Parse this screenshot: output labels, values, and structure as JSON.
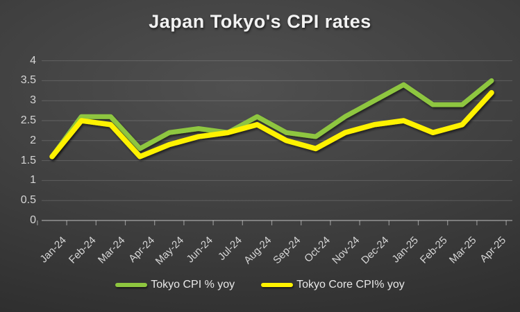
{
  "chart_data": {
    "type": "line",
    "title": "Japan Tokyo's CPI rates",
    "categories": [
      "Jan-24",
      "Feb-24",
      "Mar-24",
      "Apr-24",
      "May-24",
      "Jun-24",
      "Jul-24",
      "Aug-24",
      "Sep-24",
      "Oct-24",
      "Nov-24",
      "Dec-24",
      "Jan-25",
      "Feb-25",
      "Mar-25",
      "Apr-25"
    ],
    "series": [
      {
        "name": "Tokyo CPI % yoy",
        "color": "#8EC63F",
        "stroke_width": 7,
        "values": [
          1.6,
          2.6,
          2.6,
          1.8,
          2.2,
          2.3,
          2.2,
          2.6,
          2.2,
          2.1,
          2.6,
          3.0,
          3.4,
          2.9,
          2.9,
          3.5
        ]
      },
      {
        "name": "Tokyo Core CPI% yoy",
        "color": "#FFF200",
        "stroke_width": 7.5,
        "values": [
          1.6,
          2.5,
          2.4,
          1.6,
          1.9,
          2.1,
          2.2,
          2.4,
          2.0,
          1.8,
          2.2,
          2.4,
          2.5,
          2.2,
          2.4,
          3.2
        ]
      }
    ],
    "ylim": [
      0,
      4
    ],
    "yticks": [
      0,
      0.5,
      1,
      1.5,
      2,
      2.5,
      3,
      3.5,
      4
    ],
    "xlabel": "",
    "ylabel": "",
    "grid": true,
    "legend_position": "bottom",
    "x_label_rotation": -45
  },
  "style": {
    "grid_color": "rgba(255,255,255,0.16)",
    "axis_color": "rgba(255,255,255,0.45)",
    "label_color": "#d6d6d6",
    "title_color": "#f2f2f2",
    "background_center": "#505050",
    "background_edge": "#262626"
  }
}
